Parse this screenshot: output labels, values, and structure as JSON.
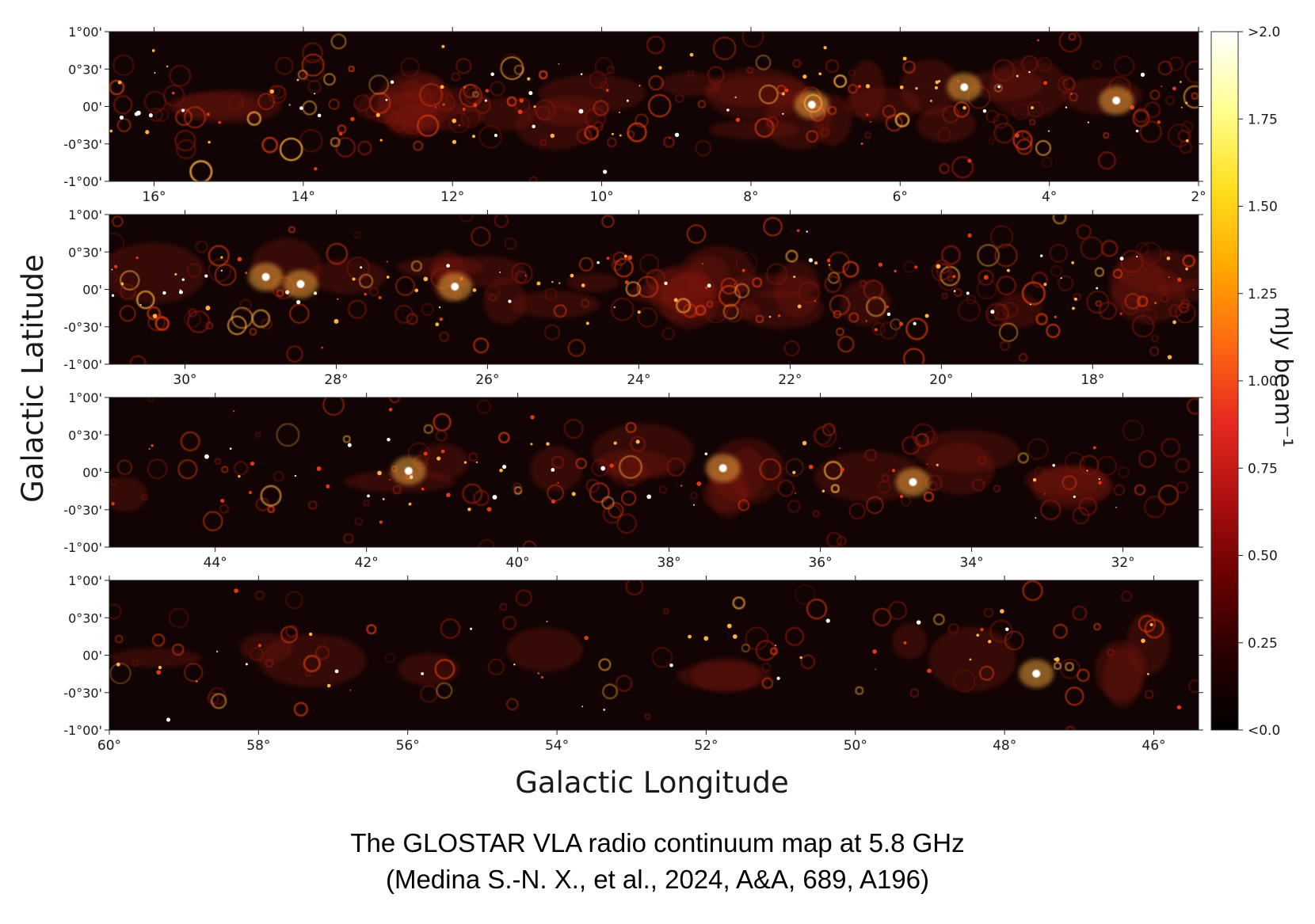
{
  "figure": {
    "y_axis_label": "Galactic Latitude",
    "x_axis_label": "Galactic Longitude",
    "caption_line1": "The GLOSTAR VLA radio continuum map at 5.8 GHz",
    "caption_line2": "(Medina S.-N. X., et al., 2024, A&A, 689, A196)"
  },
  "latitude_ticks": [
    "1°00'",
    "0°30'",
    "00'",
    "-0°30'",
    "-1°00'"
  ],
  "panels": [
    {
      "name": "panel-1",
      "lon_range": [
        16.6,
        2.0
      ],
      "lon_ticks": [
        "16°",
        "14°",
        "12°",
        "10°",
        "8°",
        "6°",
        "4°",
        "2°"
      ]
    },
    {
      "name": "panel-2",
      "lon_range": [
        31.0,
        16.6
      ],
      "lon_ticks": [
        "30°",
        "28°",
        "26°",
        "24°",
        "22°",
        "20°",
        "18°"
      ]
    },
    {
      "name": "panel-3",
      "lon_range": [
        45.4,
        31.0
      ],
      "lon_ticks": [
        "44°",
        "42°",
        "40°",
        "38°",
        "36°",
        "34°",
        "32°"
      ]
    },
    {
      "name": "panel-4",
      "lon_range": [
        60.0,
        45.4
      ],
      "lon_ticks": [
        "60°",
        "58°",
        "56°",
        "54°",
        "52°",
        "50°",
        "48°",
        "46°"
      ]
    }
  ],
  "colorbar": {
    "label": "mJy beam⁻¹",
    "tick_labels": [
      ">2.0",
      "1.75",
      "1.50",
      "1.25",
      "1.00",
      "0.75",
      "0.50",
      "0.25",
      "<0.0"
    ],
    "tick_values": [
      2.0,
      1.75,
      1.5,
      1.25,
      1.0,
      0.75,
      0.5,
      0.25,
      0.0
    ],
    "colors": [
      "#000000",
      "#2a0000",
      "#6a0000",
      "#b01010",
      "#e82a20",
      "#ff6a10",
      "#ffaa00",
      "#ffe020",
      "#ffff90",
      "#ffffff"
    ]
  },
  "palette": {
    "background": "#ffffff",
    "map_background": "#120404",
    "emission_dim": "#7a1408",
    "emission_mid": "#e03a10",
    "emission_bright": "#ffb040",
    "emission_peak": "#ffffff"
  }
}
